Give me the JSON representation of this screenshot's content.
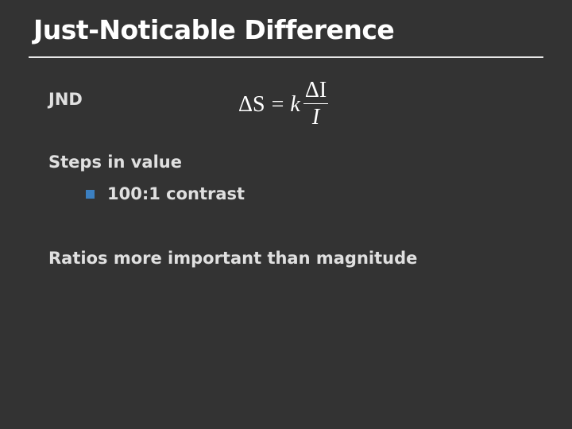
{
  "slide": {
    "title": "Just-Noticable Difference",
    "items": [
      {
        "label": "JND"
      },
      {
        "label": "Steps in value"
      },
      {
        "label": "100:1 contrast",
        "level": 2,
        "bullet_color": "#3b7fc0"
      },
      {
        "label": "Ratios more important than magnitude"
      }
    ],
    "equation": {
      "lhs": "ΔS",
      "eq": "=",
      "k": "k",
      "num": "ΔI",
      "den": "I"
    }
  }
}
